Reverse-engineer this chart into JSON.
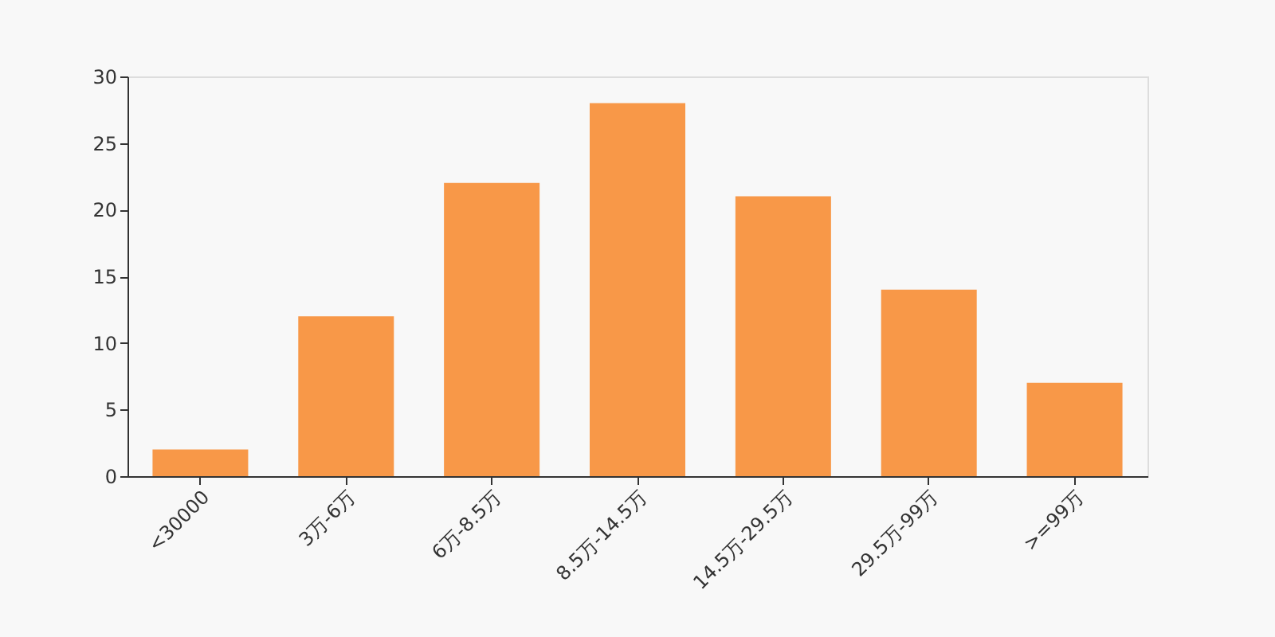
{
  "chart_data": {
    "type": "bar",
    "categories": [
      "<30000",
      "3万-6万",
      "6万-8.5万",
      "8.5万-14.5万",
      "14.5万-29.5万",
      "29.5万-99万",
      ">=99万"
    ],
    "values": [
      2,
      12,
      22,
      28,
      21,
      14,
      7
    ],
    "color": "#f89848",
    "ylim": [
      0,
      30
    ],
    "yticks": [
      0,
      5,
      10,
      15,
      20,
      25,
      30
    ],
    "grid": false
  }
}
